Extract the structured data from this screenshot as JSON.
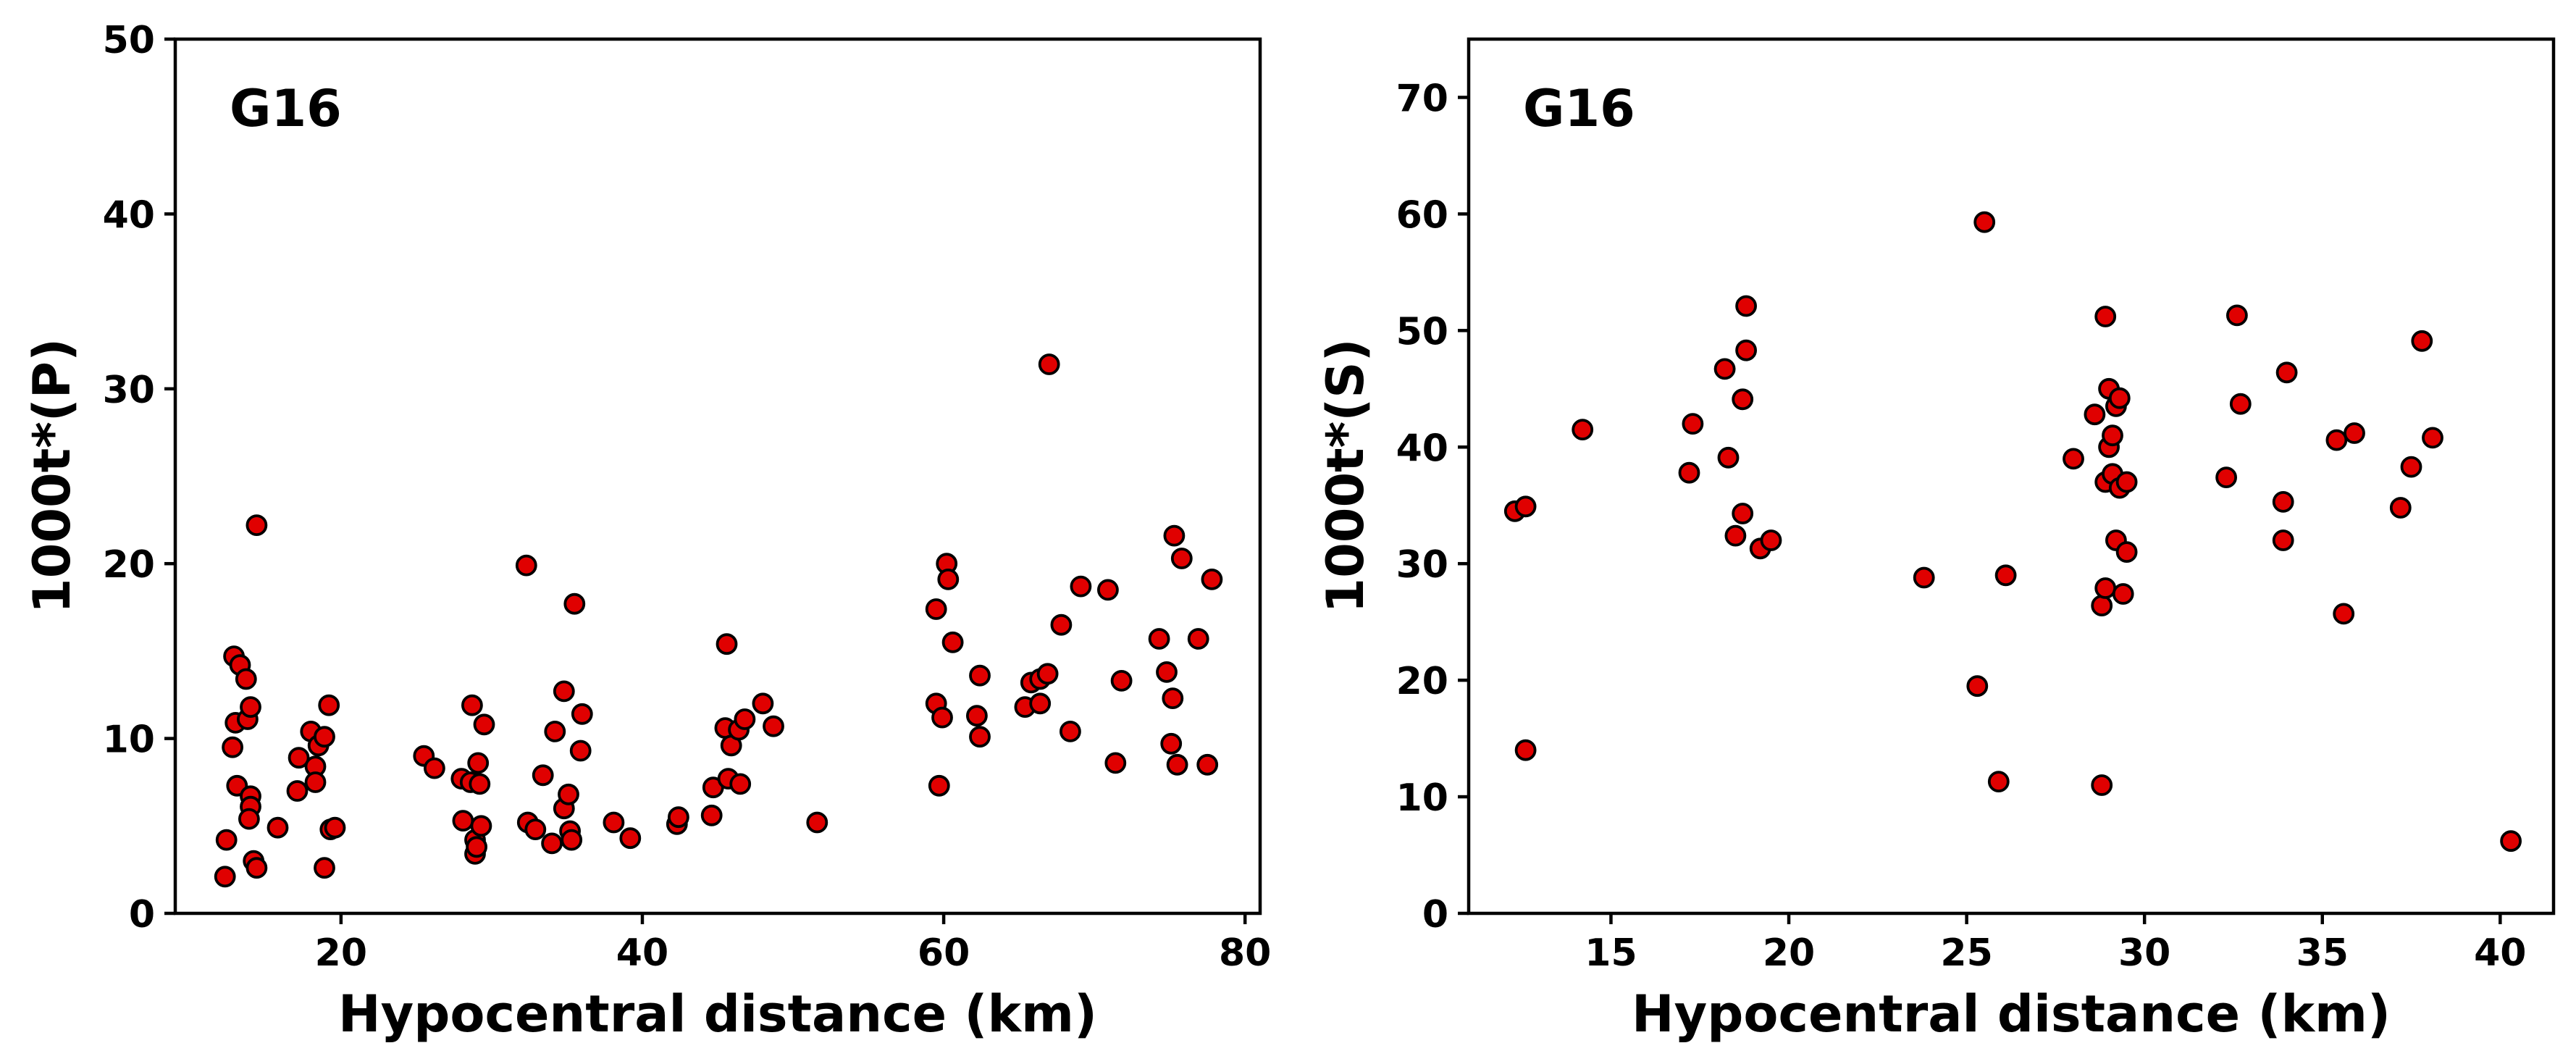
{
  "chart_data": [
    {
      "type": "scatter",
      "panel_label": "G16",
      "xlabel": "Hypocentral distance (km)",
      "ylabel": "1000t*(P)",
      "xlim": [
        9,
        81
      ],
      "ylim": [
        0,
        50
      ],
      "xticks": [
        20,
        40,
        60,
        80
      ],
      "yticks": [
        0,
        10,
        20,
        30,
        40,
        50
      ],
      "grid": false,
      "marker_color": "#e00000",
      "marker_edge": "#000000",
      "points": [
        [
          12.3,
          2.1
        ],
        [
          12.4,
          4.2
        ],
        [
          12.8,
          9.5
        ],
        [
          12.9,
          14.7
        ],
        [
          13.0,
          10.9
        ],
        [
          13.1,
          7.3
        ],
        [
          13.3,
          14.2
        ],
        [
          13.7,
          13.4
        ],
        [
          13.8,
          11.1
        ],
        [
          14.0,
          6.7
        ],
        [
          14.0,
          6.1
        ],
        [
          13.9,
          5.4
        ],
        [
          14.0,
          11.8
        ],
        [
          14.2,
          3.0
        ],
        [
          14.4,
          2.6
        ],
        [
          14.4,
          22.2
        ],
        [
          15.8,
          4.9
        ],
        [
          17.1,
          7.0
        ],
        [
          17.2,
          8.9
        ],
        [
          18.0,
          10.4
        ],
        [
          18.3,
          8.4
        ],
        [
          18.3,
          7.5
        ],
        [
          18.5,
          9.6
        ],
        [
          18.9,
          10.1
        ],
        [
          18.9,
          2.6
        ],
        [
          19.2,
          11.9
        ],
        [
          19.3,
          4.8
        ],
        [
          19.6,
          4.9
        ],
        [
          25.5,
          9.0
        ],
        [
          26.2,
          8.3
        ],
        [
          28.0,
          7.7
        ],
        [
          28.1,
          5.3
        ],
        [
          28.6,
          7.5
        ],
        [
          28.7,
          11.9
        ],
        [
          28.9,
          4.2
        ],
        [
          28.9,
          3.4
        ],
        [
          29.0,
          3.8
        ],
        [
          29.1,
          8.6
        ],
        [
          29.2,
          7.4
        ],
        [
          29.3,
          5.0
        ],
        [
          29.5,
          10.8
        ],
        [
          32.3,
          19.9
        ],
        [
          32.4,
          5.2
        ],
        [
          32.9,
          4.8
        ],
        [
          33.4,
          7.9
        ],
        [
          34.0,
          4.0
        ],
        [
          34.2,
          10.4
        ],
        [
          34.8,
          6.0
        ],
        [
          34.8,
          12.7
        ],
        [
          35.1,
          6.8
        ],
        [
          35.2,
          4.7
        ],
        [
          35.3,
          4.2
        ],
        [
          35.5,
          17.7
        ],
        [
          35.9,
          9.3
        ],
        [
          36.0,
          11.4
        ],
        [
          38.1,
          5.2
        ],
        [
          39.2,
          4.3
        ],
        [
          42.3,
          5.1
        ],
        [
          42.4,
          5.5
        ],
        [
          44.6,
          5.6
        ],
        [
          44.7,
          7.2
        ],
        [
          45.5,
          10.6
        ],
        [
          45.6,
          15.4
        ],
        [
          45.7,
          7.7
        ],
        [
          45.9,
          9.6
        ],
        [
          46.4,
          10.5
        ],
        [
          46.5,
          7.4
        ],
        [
          46.8,
          11.1
        ],
        [
          48.0,
          12.0
        ],
        [
          48.7,
          10.7
        ],
        [
          51.6,
          5.2
        ],
        [
          59.5,
          17.4
        ],
        [
          59.5,
          12.0
        ],
        [
          59.7,
          7.3
        ],
        [
          59.9,
          11.2
        ],
        [
          60.2,
          20.0
        ],
        [
          60.3,
          19.1
        ],
        [
          60.6,
          15.5
        ],
        [
          62.2,
          11.3
        ],
        [
          62.4,
          13.6
        ],
        [
          62.4,
          10.1
        ],
        [
          65.4,
          11.8
        ],
        [
          65.8,
          13.2
        ],
        [
          66.4,
          13.4
        ],
        [
          66.4,
          12.0
        ],
        [
          66.9,
          13.7
        ],
        [
          67.0,
          31.4
        ],
        [
          67.8,
          16.5
        ],
        [
          68.4,
          10.4
        ],
        [
          69.1,
          18.7
        ],
        [
          70.9,
          18.5
        ],
        [
          71.4,
          8.6
        ],
        [
          71.8,
          13.3
        ],
        [
          74.3,
          15.7
        ],
        [
          74.8,
          13.8
        ],
        [
          75.1,
          9.7
        ],
        [
          75.2,
          12.3
        ],
        [
          75.3,
          21.6
        ],
        [
          75.5,
          8.5
        ],
        [
          75.8,
          20.3
        ],
        [
          76.9,
          15.7
        ],
        [
          77.5,
          8.5
        ],
        [
          77.8,
          19.1
        ]
      ]
    },
    {
      "type": "scatter",
      "panel_label": "G16",
      "xlabel": "Hypocentral distance (km)",
      "ylabel": "1000t*(S)",
      "xlim": [
        11,
        41.5
      ],
      "ylim": [
        0,
        75
      ],
      "xticks": [
        15,
        20,
        25,
        30,
        35,
        40
      ],
      "yticks": [
        0,
        10,
        20,
        30,
        40,
        50,
        60,
        70
      ],
      "grid": false,
      "marker_color": "#e00000",
      "marker_edge": "#000000",
      "points": [
        [
          12.3,
          34.5
        ],
        [
          12.6,
          34.9
        ],
        [
          12.6,
          14.0
        ],
        [
          14.2,
          41.5
        ],
        [
          17.2,
          37.8
        ],
        [
          17.3,
          42.0
        ],
        [
          18.2,
          46.7
        ],
        [
          18.3,
          39.1
        ],
        [
          18.5,
          32.4
        ],
        [
          18.7,
          44.1
        ],
        [
          18.7,
          34.3
        ],
        [
          18.8,
          48.3
        ],
        [
          18.8,
          52.1
        ],
        [
          19.2,
          31.3
        ],
        [
          19.5,
          32.0
        ],
        [
          23.8,
          28.8
        ],
        [
          25.3,
          19.5
        ],
        [
          25.5,
          59.3
        ],
        [
          25.9,
          11.3
        ],
        [
          26.1,
          29.0
        ],
        [
          28.0,
          39.0
        ],
        [
          28.6,
          42.8
        ],
        [
          28.8,
          26.4
        ],
        [
          28.8,
          11.0
        ],
        [
          28.9,
          51.2
        ],
        [
          28.9,
          37.0
        ],
        [
          28.9,
          27.9
        ],
        [
          29.0,
          45.0
        ],
        [
          29.0,
          40.0
        ],
        [
          29.1,
          41.0
        ],
        [
          29.1,
          37.7
        ],
        [
          29.2,
          43.5
        ],
        [
          29.2,
          32.0
        ],
        [
          29.3,
          44.2
        ],
        [
          29.3,
          36.5
        ],
        [
          29.4,
          27.4
        ],
        [
          29.5,
          37.0
        ],
        [
          29.5,
          31.0
        ],
        [
          32.3,
          37.4
        ],
        [
          32.6,
          51.3
        ],
        [
          32.7,
          43.7
        ],
        [
          33.9,
          35.3
        ],
        [
          33.9,
          32.0
        ],
        [
          34.0,
          46.4
        ],
        [
          35.4,
          40.6
        ],
        [
          35.6,
          25.7
        ],
        [
          35.9,
          41.2
        ],
        [
          37.2,
          34.8
        ],
        [
          37.5,
          38.3
        ],
        [
          37.8,
          49.1
        ],
        [
          38.1,
          40.8
        ],
        [
          40.3,
          6.2
        ]
      ]
    }
  ]
}
